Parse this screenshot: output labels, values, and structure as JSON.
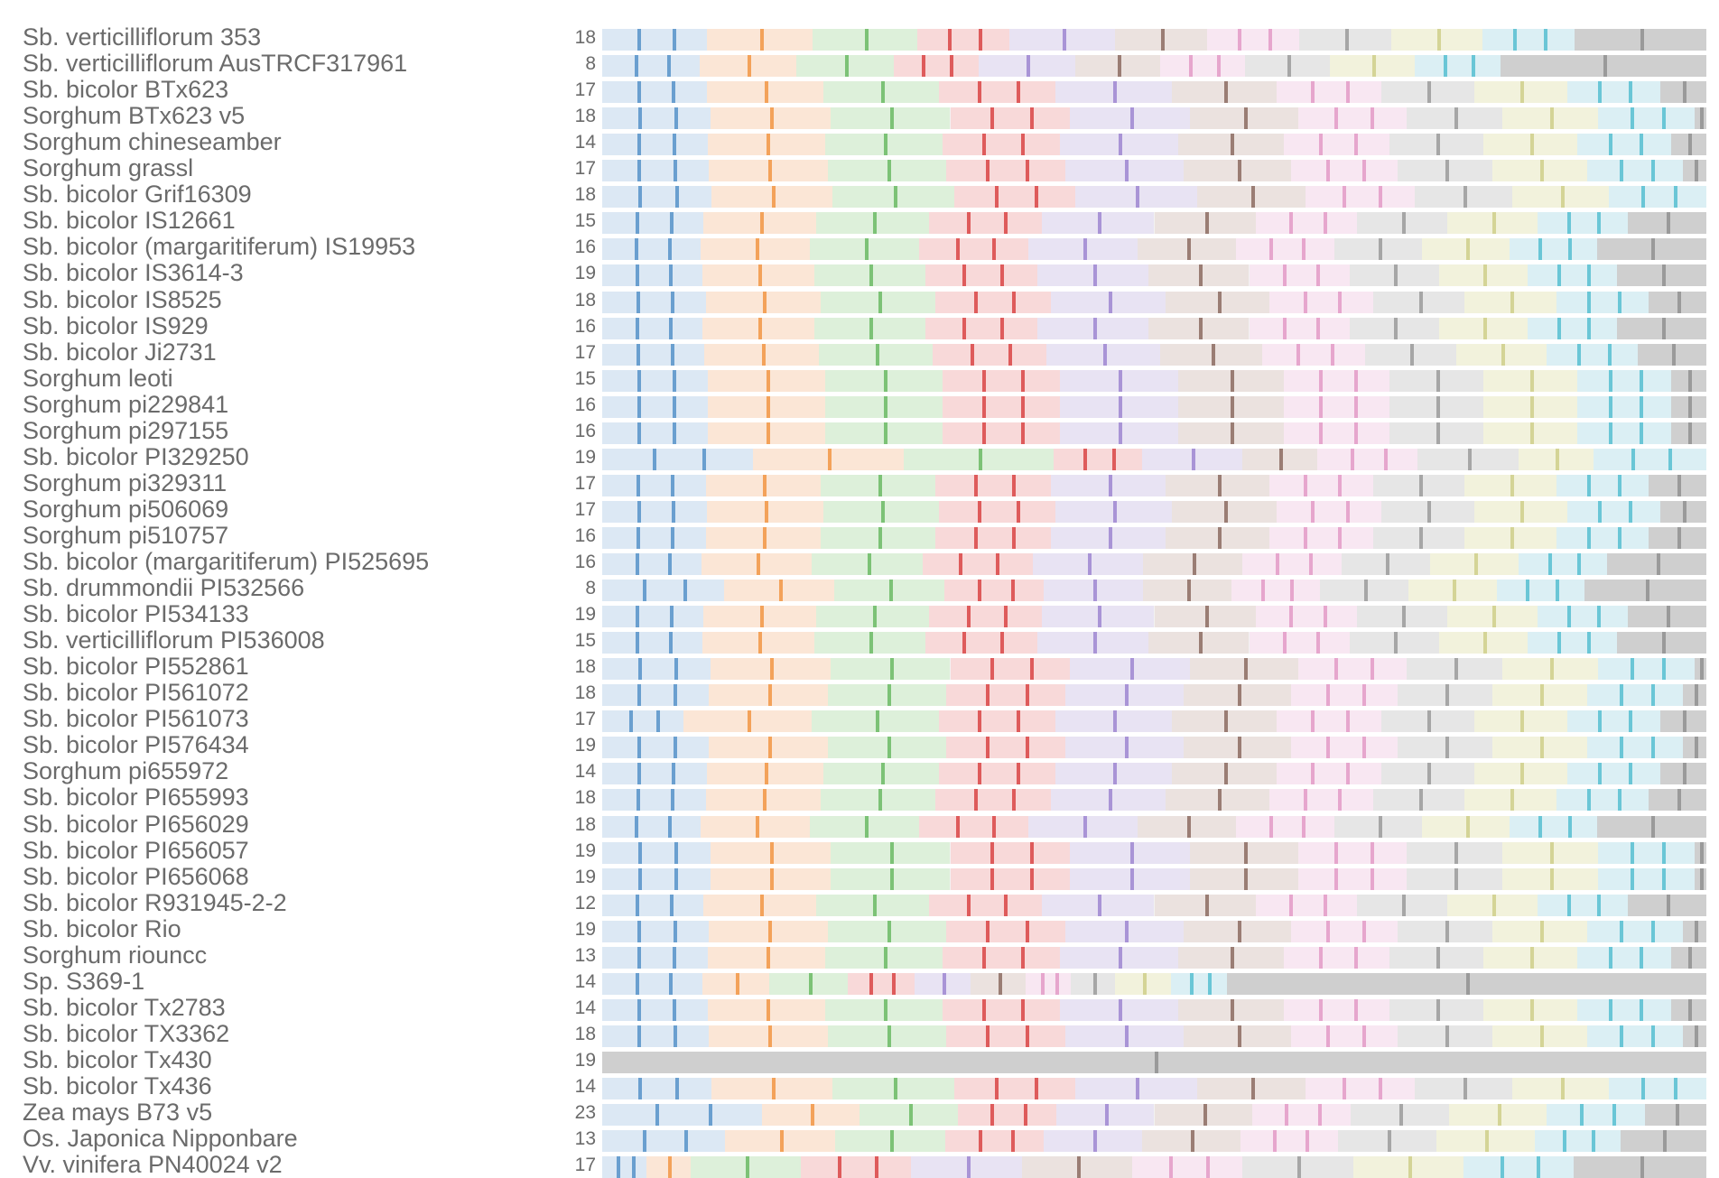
{
  "chart_data": {
    "type": "bar",
    "title": "",
    "xlabel": "",
    "ylabel": "",
    "palette": [
      "#dce8f4",
      "#fbe6d6",
      "#ddf0da",
      "#f8d9d9",
      "#e8e3f3",
      "#ebe2df",
      "#f8e7f2",
      "#e6e6e6",
      "#f2f2dc",
      "#dbeff4",
      "#cfcfcf"
    ],
    "mark_palette": [
      "#6a9fcf",
      "#f3a25a",
      "#7cc276",
      "#de5b5b",
      "#a994d6",
      "#9a7d74",
      "#e6a6cd",
      "#a6a6a6",
      "#d4d496",
      "#6ac6d6",
      "#9a9a9a"
    ],
    "rows": [
      {
        "label": "Sb. verticilliflorum 353",
        "count": 18,
        "segments": [
          0.08,
          0.08,
          0.08,
          0.07,
          0.08,
          0.07,
          0.07,
          0.07,
          0.07,
          0.07,
          0.1
        ]
      },
      {
        "label": "Sb. verticilliflorum AusTRCF317961",
        "count": 8,
        "segments": [
          0.08,
          0.08,
          0.08,
          0.07,
          0.08,
          0.07,
          0.07,
          0.07,
          0.07,
          0.07,
          0.17
        ]
      },
      {
        "label": "Sb. bicolor BTx623",
        "count": 17,
        "segments": [
          0.09,
          0.1,
          0.1,
          0.1,
          0.1,
          0.09,
          0.09,
          0.08,
          0.08,
          0.08,
          0.04
        ]
      },
      {
        "label": "Sorghum BTx623 v5",
        "count": 18,
        "segments": [
          0.09,
          0.1,
          0.1,
          0.1,
          0.1,
          0.09,
          0.09,
          0.08,
          0.08,
          0.08,
          0.01
        ]
      },
      {
        "label": "Sorghum chineseamber",
        "count": 14,
        "segments": [
          0.09,
          0.1,
          0.1,
          0.1,
          0.1,
          0.09,
          0.09,
          0.08,
          0.08,
          0.08,
          0.03
        ]
      },
      {
        "label": "Sorghum grassl",
        "count": 17,
        "segments": [
          0.09,
          0.1,
          0.1,
          0.1,
          0.1,
          0.09,
          0.09,
          0.08,
          0.08,
          0.08,
          0.02
        ]
      },
      {
        "label": "Sb. bicolor Grif16309",
        "count": 18,
        "segments": [
          0.09,
          0.1,
          0.1,
          0.1,
          0.1,
          0.09,
          0.09,
          0.08,
          0.08,
          0.08,
          0.0
        ]
      },
      {
        "label": "Sb. bicolor IS12661",
        "count": 15,
        "segments": [
          0.09,
          0.1,
          0.1,
          0.1,
          0.1,
          0.09,
          0.09,
          0.08,
          0.08,
          0.08,
          0.07
        ]
      },
      {
        "label": "Sb. bicolor (margaritiferum) IS19953",
        "count": 16,
        "segments": [
          0.09,
          0.1,
          0.1,
          0.1,
          0.1,
          0.09,
          0.09,
          0.08,
          0.08,
          0.08,
          0.1
        ]
      },
      {
        "label": "Sb. bicolor IS3614-3",
        "count": 19,
        "segments": [
          0.09,
          0.1,
          0.1,
          0.1,
          0.1,
          0.09,
          0.09,
          0.08,
          0.08,
          0.08,
          0.08
        ]
      },
      {
        "label": "Sb. bicolor IS8525",
        "count": 18,
        "segments": [
          0.09,
          0.1,
          0.1,
          0.1,
          0.1,
          0.09,
          0.09,
          0.08,
          0.08,
          0.08,
          0.05
        ]
      },
      {
        "label": "Sb. bicolor IS929",
        "count": 16,
        "segments": [
          0.09,
          0.1,
          0.1,
          0.1,
          0.1,
          0.09,
          0.09,
          0.08,
          0.08,
          0.08,
          0.08
        ]
      },
      {
        "label": "Sb. bicolor Ji2731",
        "count": 17,
        "segments": [
          0.09,
          0.1,
          0.1,
          0.1,
          0.1,
          0.09,
          0.09,
          0.08,
          0.08,
          0.08,
          0.06
        ]
      },
      {
        "label": "Sorghum leoti",
        "count": 15,
        "segments": [
          0.09,
          0.1,
          0.1,
          0.1,
          0.1,
          0.09,
          0.09,
          0.08,
          0.08,
          0.08,
          0.03
        ]
      },
      {
        "label": "Sorghum pi229841",
        "count": 16,
        "segments": [
          0.09,
          0.1,
          0.1,
          0.1,
          0.1,
          0.09,
          0.09,
          0.08,
          0.08,
          0.08,
          0.03
        ]
      },
      {
        "label": "Sorghum pi297155",
        "count": 16,
        "segments": [
          0.09,
          0.1,
          0.1,
          0.1,
          0.1,
          0.09,
          0.09,
          0.08,
          0.08,
          0.08,
          0.03
        ]
      },
      {
        "label": "Sb. bicolor PI329250",
        "count": 19,
        "segments": [
          0.12,
          0.12,
          0.12,
          0.07,
          0.08,
          0.06,
          0.08,
          0.08,
          0.06,
          0.09,
          0.0
        ]
      },
      {
        "label": "Sorghum pi329311",
        "count": 17,
        "segments": [
          0.09,
          0.1,
          0.1,
          0.1,
          0.1,
          0.09,
          0.09,
          0.08,
          0.08,
          0.08,
          0.05
        ]
      },
      {
        "label": "Sorghum pi506069",
        "count": 17,
        "segments": [
          0.09,
          0.1,
          0.1,
          0.1,
          0.1,
          0.09,
          0.09,
          0.08,
          0.08,
          0.08,
          0.04
        ]
      },
      {
        "label": "Sorghum pi510757",
        "count": 16,
        "segments": [
          0.09,
          0.1,
          0.1,
          0.1,
          0.1,
          0.09,
          0.09,
          0.08,
          0.08,
          0.08,
          0.05
        ]
      },
      {
        "label": "Sb. bicolor (margaritiferum) PI525695",
        "count": 16,
        "segments": [
          0.09,
          0.1,
          0.1,
          0.1,
          0.1,
          0.09,
          0.09,
          0.08,
          0.08,
          0.08,
          0.09
        ]
      },
      {
        "label": "Sb. drummondii PI532566",
        "count": 8,
        "segments": [
          0.11,
          0.1,
          0.1,
          0.09,
          0.09,
          0.08,
          0.08,
          0.08,
          0.08,
          0.08,
          0.11
        ]
      },
      {
        "label": "Sb. bicolor PI534133",
        "count": 19,
        "segments": [
          0.09,
          0.1,
          0.1,
          0.1,
          0.1,
          0.09,
          0.09,
          0.08,
          0.08,
          0.08,
          0.07
        ]
      },
      {
        "label": "Sb. verticilliflorum PI536008",
        "count": 15,
        "segments": [
          0.09,
          0.1,
          0.1,
          0.1,
          0.1,
          0.09,
          0.09,
          0.08,
          0.08,
          0.08,
          0.08
        ]
      },
      {
        "label": "Sb. bicolor PI552861",
        "count": 18,
        "segments": [
          0.09,
          0.1,
          0.1,
          0.1,
          0.1,
          0.09,
          0.09,
          0.08,
          0.08,
          0.08,
          0.01
        ]
      },
      {
        "label": "Sb. bicolor PI561072",
        "count": 18,
        "segments": [
          0.09,
          0.1,
          0.1,
          0.1,
          0.1,
          0.09,
          0.09,
          0.08,
          0.08,
          0.08,
          0.02
        ]
      },
      {
        "label": "Sb. bicolor PI561073",
        "count": 17,
        "segments": [
          0.07,
          0.11,
          0.11,
          0.1,
          0.1,
          0.09,
          0.09,
          0.08,
          0.08,
          0.08,
          0.04
        ]
      },
      {
        "label": "Sb. bicolor PI576434",
        "count": 19,
        "segments": [
          0.09,
          0.1,
          0.1,
          0.1,
          0.1,
          0.09,
          0.09,
          0.08,
          0.08,
          0.08,
          0.02
        ]
      },
      {
        "label": "Sorghum pi655972",
        "count": 14,
        "segments": [
          0.09,
          0.1,
          0.1,
          0.1,
          0.1,
          0.09,
          0.09,
          0.08,
          0.08,
          0.08,
          0.04
        ]
      },
      {
        "label": "Sb. bicolor PI655993",
        "count": 18,
        "segments": [
          0.09,
          0.1,
          0.1,
          0.1,
          0.1,
          0.09,
          0.09,
          0.08,
          0.08,
          0.08,
          0.05
        ]
      },
      {
        "label": "Sb. bicolor PI656029",
        "count": 18,
        "segments": [
          0.09,
          0.1,
          0.1,
          0.1,
          0.1,
          0.09,
          0.09,
          0.08,
          0.08,
          0.08,
          0.1
        ]
      },
      {
        "label": "Sb. bicolor PI656057",
        "count": 19,
        "segments": [
          0.09,
          0.1,
          0.1,
          0.1,
          0.1,
          0.09,
          0.09,
          0.08,
          0.08,
          0.08,
          0.01
        ]
      },
      {
        "label": "Sb. bicolor PI656068",
        "count": 19,
        "segments": [
          0.09,
          0.1,
          0.1,
          0.1,
          0.1,
          0.09,
          0.09,
          0.08,
          0.08,
          0.08,
          0.01
        ]
      },
      {
        "label": "Sb. bicolor R931945-2-2",
        "count": 12,
        "segments": [
          0.09,
          0.1,
          0.1,
          0.1,
          0.1,
          0.09,
          0.09,
          0.08,
          0.08,
          0.08,
          0.07
        ]
      },
      {
        "label": "Sb. bicolor Rio",
        "count": 19,
        "segments": [
          0.09,
          0.1,
          0.1,
          0.1,
          0.1,
          0.09,
          0.09,
          0.08,
          0.08,
          0.08,
          0.02
        ]
      },
      {
        "label": "Sorghum riouncc",
        "count": 13,
        "segments": [
          0.09,
          0.1,
          0.1,
          0.1,
          0.1,
          0.09,
          0.09,
          0.08,
          0.08,
          0.08,
          0.03
        ]
      },
      {
        "label": "Sp. S369-1",
        "count": 14,
        "segments": [
          0.09,
          0.06,
          0.07,
          0.06,
          0.05,
          0.05,
          0.04,
          0.04,
          0.05,
          0.05,
          0.43
        ]
      },
      {
        "label": "Sb. bicolor Tx2783",
        "count": 14,
        "segments": [
          0.09,
          0.1,
          0.1,
          0.1,
          0.1,
          0.09,
          0.09,
          0.08,
          0.08,
          0.08,
          0.03
        ]
      },
      {
        "label": "Sb. bicolor TX3362",
        "count": 18,
        "segments": [
          0.09,
          0.1,
          0.1,
          0.1,
          0.1,
          0.09,
          0.09,
          0.08,
          0.08,
          0.08,
          0.02
        ]
      },
      {
        "label": "Sb. bicolor Tx430",
        "count": 19,
        "segments": [
          0.0,
          0.0,
          0.0,
          0.0,
          0.0,
          0.0,
          0.0,
          0.0,
          0.0,
          0.0,
          1.0
        ]
      },
      {
        "label": "Sb. bicolor Tx436",
        "count": 14,
        "segments": [
          0.09,
          0.1,
          0.1,
          0.1,
          0.1,
          0.09,
          0.09,
          0.08,
          0.08,
          0.08,
          0.0
        ]
      },
      {
        "label": "Zea mays B73 v5",
        "count": 23,
        "segments": [
          0.13,
          0.08,
          0.08,
          0.08,
          0.08,
          0.08,
          0.08,
          0.08,
          0.08,
          0.08,
          0.05
        ]
      },
      {
        "label": "Os. Japonica Nipponbare",
        "count": 13,
        "segments": [
          0.1,
          0.09,
          0.09,
          0.08,
          0.08,
          0.08,
          0.08,
          0.08,
          0.08,
          0.07,
          0.07
        ]
      },
      {
        "label": "Vv. vinifera PN40024 v2",
        "count": 17,
        "segments": [
          0.04,
          0.04,
          0.1,
          0.1,
          0.1,
          0.1,
          0.1,
          0.1,
          0.1,
          0.1,
          0.12
        ]
      }
    ]
  }
}
